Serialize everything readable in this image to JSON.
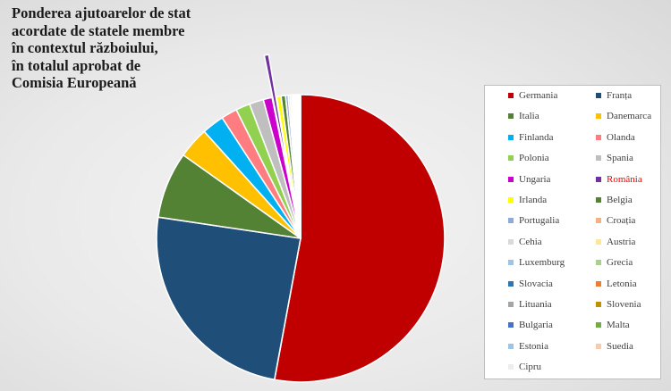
{
  "chart_data": {
    "type": "pie",
    "title_lines": [
      "Ponderea ajutoarelor de stat",
      "acordate de statele membre",
      "în contextul războiului,",
      "în totalul aprobat de",
      "Comisia Europeană"
    ],
    "slices": [
      {
        "label": "Germania",
        "value": 53.0,
        "color": "#c00000"
      },
      {
        "label": "Franța",
        "value": 24.5,
        "color": "#1f4e79"
      },
      {
        "label": "Italia",
        "value": 7.5,
        "color": "#548235"
      },
      {
        "label": "Danemarca",
        "value": 3.5,
        "color": "#ffc000"
      },
      {
        "label": "Finlanda",
        "value": 2.5,
        "color": "#00b0f0"
      },
      {
        "label": "Olanda",
        "value": 1.8,
        "color": "#ff7c80"
      },
      {
        "label": "Polonia",
        "value": 1.6,
        "color": "#92d050"
      },
      {
        "label": "Spania",
        "value": 1.6,
        "color": "#bfbfbf"
      },
      {
        "label": "Ungaria",
        "value": 1.0,
        "color": "#cc00cc"
      },
      {
        "label": "România",
        "value": 0.5,
        "color": "#7030a0",
        "exploded": true
      },
      {
        "label": "Irlanda",
        "value": 0.5,
        "color": "#ffff00"
      },
      {
        "label": "Belgia",
        "value": 0.5,
        "color": "#548235"
      },
      {
        "label": "Portugalia",
        "value": 0.3,
        "color": "#8ea9db"
      },
      {
        "label": "Croația",
        "value": 0.2,
        "color": "#f4b183"
      },
      {
        "label": "Cehia",
        "value": 0.2,
        "color": "#d9d9d9"
      },
      {
        "label": "Austria",
        "value": 0.15,
        "color": "#ffe699"
      },
      {
        "label": "Luxemburg",
        "value": 0.12,
        "color": "#9dc3e6"
      },
      {
        "label": "Grecia",
        "value": 0.12,
        "color": "#a9d08e"
      },
      {
        "label": "Slovacia",
        "value": 0.1,
        "color": "#2e75b6"
      },
      {
        "label": "Letonia",
        "value": 0.1,
        "color": "#ed7d31"
      },
      {
        "label": "Lituania",
        "value": 0.08,
        "color": "#a5a5a5"
      },
      {
        "label": "Slovenia",
        "value": 0.08,
        "color": "#bf9000"
      },
      {
        "label": "Bulgaria",
        "value": 0.06,
        "color": "#4472c4"
      },
      {
        "label": "Malta",
        "value": 0.05,
        "color": "#70ad47"
      },
      {
        "label": "Estonia",
        "value": 0.05,
        "color": "#9dc3e6"
      },
      {
        "label": "Suedia",
        "value": 0.04,
        "color": "#f8cbad"
      },
      {
        "label": "Cipru",
        "value": 0.03,
        "color": "#ededed"
      }
    ],
    "highlight_label": "România",
    "highlight_color": "#ff0000",
    "legend_placement": "right"
  }
}
